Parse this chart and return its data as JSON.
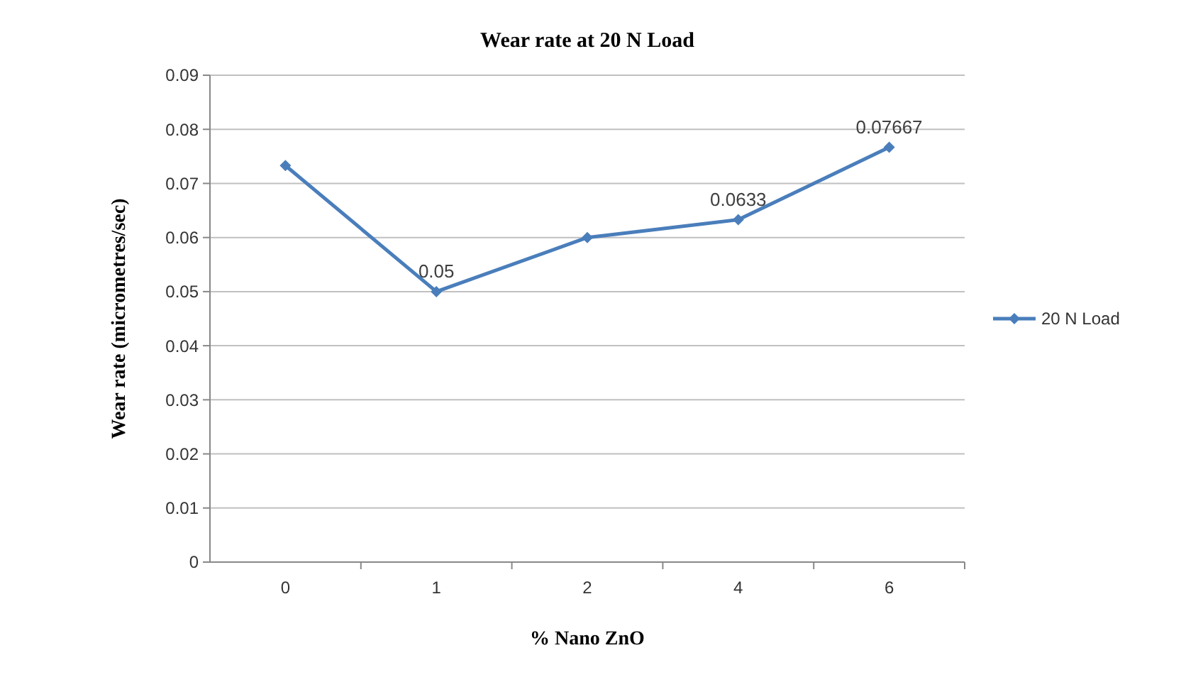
{
  "chart_data": {
    "type": "line",
    "title": "Wear rate at 20 N Load",
    "xlabel": "% Nano ZnO",
    "ylabel": "Wear rate (micrometres/sec)",
    "categories": [
      "0",
      "1",
      "2",
      "4",
      "6"
    ],
    "series": [
      {
        "name": "20 N Load",
        "color": "#4a7ebb",
        "values": [
          0.0733,
          0.05,
          0.06,
          0.0633,
          0.07667
        ],
        "value_labels": [
          null,
          "0.05",
          null,
          "0.0633",
          "0.07667"
        ]
      }
    ],
    "ylim": [
      0,
      0.09
    ],
    "yticks": [
      0,
      0.01,
      0.02,
      0.03,
      0.04,
      0.05,
      0.06,
      0.07,
      0.08,
      0.09
    ],
    "grid": "y",
    "legend": "right",
    "marker": "diamond",
    "line_style": "solid"
  }
}
